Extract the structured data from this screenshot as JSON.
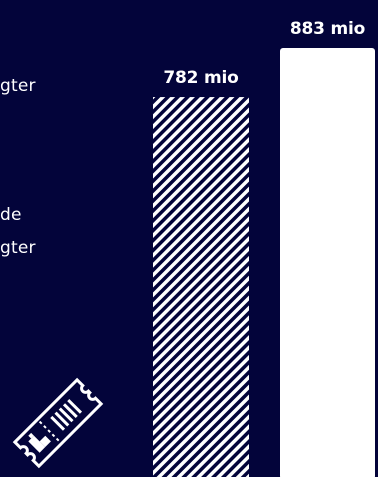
{
  "labels": {
    "line1": "gter",
    "line2": "de",
    "line3": "gter"
  },
  "chart_data": {
    "type": "bar",
    "categories": [
      "",
      ""
    ],
    "values": [
      782,
      883
    ],
    "value_labels": [
      "782 mio",
      "883 mio"
    ],
    "title": "",
    "xlabel": "",
    "ylabel": "",
    "ylim": [
      0,
      883
    ],
    "grid": false,
    "legend": "none",
    "styles": [
      "hatched",
      "solid"
    ]
  },
  "colors": {
    "background": "#03043a",
    "bar": "#ffffff"
  },
  "icons": {
    "ticket": "ticket-icon"
  }
}
